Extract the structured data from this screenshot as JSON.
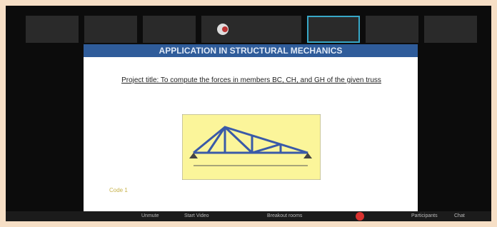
{
  "slide": {
    "title": "APPLICATION IN STRUCTURAL MECHANICS",
    "project_title": "Project title: To compute the forces in members BC, CH, and GH of the given truss",
    "note": "Code 1"
  },
  "toolbar": {
    "items": [
      "Unmute",
      "Start Video",
      "Breakout rooms",
      "Participants",
      "Chat"
    ]
  }
}
